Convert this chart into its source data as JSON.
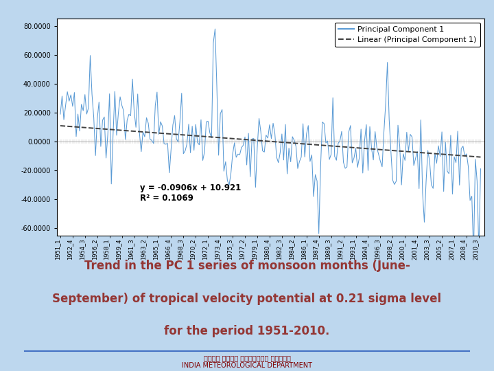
{
  "equation": "y = -0.0906x + 10.921",
  "r_squared": "R² = 0.1069",
  "ylim": [
    -65,
    85
  ],
  "yticks": [
    -60.0,
    -40.0,
    -20.0,
    0.0,
    20.0,
    40.0,
    60.0,
    80.0
  ],
  "ytick_labels": [
    "-60.0000",
    "-40.0000",
    "-20.0000",
    "0.0000",
    "20.0000",
    "40.0000",
    "60.0000",
    "80.0000"
  ],
  "slope": -0.0906,
  "intercept": 10.921,
  "line_color": "#5B9BD5",
  "trend_color": "#404040",
  "background_color": "#FFFFFF",
  "outer_background": "#BDD7EE",
  "subtitle_color": "#943634",
  "subtitle_bg": "#BDD7EE",
  "subtitle_line1": "Trend in the PC 1 series of monsoon months (June-",
  "subtitle_line2": "September) of tropical velocity potential at 0.21 sigma level",
  "subtitle_line3": "for the period 1951-2010.",
  "tick_years": [
    1951,
    1952,
    1954,
    1956,
    1958,
    1959,
    1961,
    1963,
    1965,
    1966,
    1968,
    1970,
    1972,
    1973,
    1975,
    1977,
    1979,
    1980,
    1982,
    1984,
    1986,
    1987,
    1989,
    1991,
    1993,
    1994,
    1996,
    1998,
    2000,
    2001,
    2003,
    2005,
    2007,
    2008,
    2010
  ],
  "tick_quarters": [
    1,
    4,
    3,
    2,
    1,
    4,
    3,
    2,
    1,
    4,
    3,
    2,
    1,
    4,
    3,
    2,
    1,
    4,
    3,
    2,
    1,
    4,
    3,
    2,
    1,
    4,
    3,
    2,
    1,
    4,
    3,
    2,
    1,
    4,
    3
  ]
}
